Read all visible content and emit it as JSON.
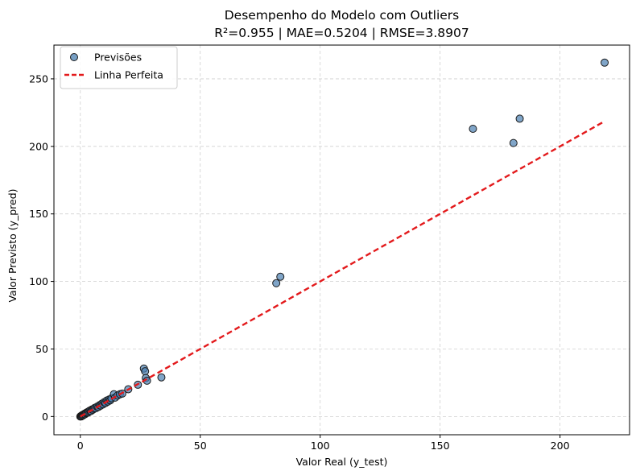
{
  "chart_data": {
    "type": "scatter",
    "title": "Desempenho do Modelo com Outliers",
    "subtitle": "R²=0.955 | MAE=0.5204 | RMSE=3.8907",
    "xlabel": "Valor Real (y_test)",
    "ylabel": "Valor Previsto (y_pred)",
    "xlim": [
      -11,
      229
    ],
    "ylim": [
      -13.5,
      275
    ],
    "xticks": [
      0,
      50,
      100,
      150,
      200
    ],
    "yticks": [
      0,
      50,
      100,
      150,
      200,
      250
    ],
    "grid": true,
    "legend_position": "top-left",
    "series": [
      {
        "name": "Previsões",
        "kind": "scatter",
        "color": "#4a7fb0",
        "edge_color": "#1a1a1a",
        "x": [
          0,
          0.2,
          0.4,
          0.6,
          0.8,
          1.0,
          1.2,
          1.5,
          1.8,
          2.0,
          2.3,
          2.6,
          3.0,
          3.3,
          3.6,
          4.0,
          4.4,
          4.8,
          5.2,
          5.6,
          6.0,
          6.5,
          7.0,
          7.5,
          8.0,
          8.5,
          9.0,
          9.5,
          10.0,
          10.5,
          11.0,
          11.5,
          12.0,
          12.5,
          13.0,
          14.0,
          14.5,
          15.5,
          16.5,
          17.5,
          20.0,
          24.0,
          26.5,
          27.0,
          27.3,
          27.8,
          33.8,
          81.7,
          83.4,
          163.7,
          180.6,
          183.2,
          218.6
        ],
        "y": [
          0,
          0.3,
          0.1,
          0.8,
          0.5,
          1.2,
          0.9,
          1.6,
          2.1,
          1.7,
          2.5,
          2.9,
          3.3,
          3.0,
          3.9,
          4.4,
          4.0,
          5.2,
          5.0,
          5.8,
          6.4,
          6.1,
          7.3,
          7.0,
          8.4,
          8.1,
          9.5,
          9.0,
          10.6,
          10.0,
          11.8,
          11.0,
          12.6,
          12.0,
          13.5,
          16.5,
          14.0,
          15.5,
          16.5,
          17.0,
          20.2,
          23.5,
          35.5,
          33.5,
          28.5,
          26.5,
          29.0,
          98.7,
          103.5,
          213.0,
          202.5,
          220.5,
          262.0
        ]
      },
      {
        "name": "Linha Perfeita",
        "kind": "line",
        "style": "dashed",
        "color": "#e31a1c",
        "x": [
          0,
          218.6
        ],
        "y": [
          0,
          218.6
        ]
      }
    ]
  }
}
